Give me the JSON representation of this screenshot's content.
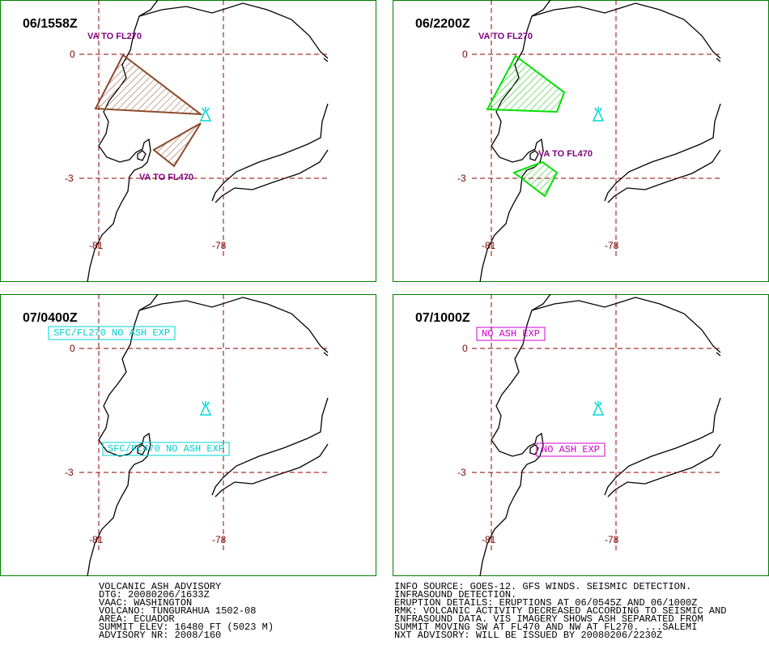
{
  "panels": [
    {
      "time": "06/1558Z",
      "annotations": [
        "VA TO FL270",
        "VA TO FL470"
      ]
    },
    {
      "time": "06/2200Z",
      "annotations": [
        "VA TO FL270",
        "VA TO FL470"
      ]
    },
    {
      "time": "07/0400Z",
      "annotations": [
        "SFC/FL270 NO ASH EXP",
        "SFC/FL470 NO ASH EXP"
      ]
    },
    {
      "time": "07/1000Z",
      "annotations": [
        "NO ASH EXP",
        "NO ASH EXP"
      ]
    }
  ],
  "grid_labels": {
    "latitudes": [
      "0",
      "-3"
    ],
    "longitudes": [
      "-81",
      "-78"
    ]
  },
  "advisory": [
    "VOLCANIC ASH ADVISORY",
    "DTG: 20080206/1633Z",
    "VAAC: WASHINGTON",
    "VOLCANO: TUNGURAHUA 1502-08",
    "AREA: ECUADOR",
    "SUMMIT ELEV: 16480 FT (5023 M)",
    "ADVISORY NR: 2008/160"
  ],
  "remarks": [
    "INFO SOURCE: GOES-12. GFS WINDS. SEISMIC DETECTION.",
    "INFRASOUND DETECTION.",
    "ERUPTION DETAILS: ERUPTIONS AT 06/0545Z AND 06/1000Z",
    "RMK: VOLCANIC ACTIVITY DECREASED ACCORDING TO SEISMIC AND",
    "INFRASOUND DATA. VIS IMAGERY SHOWS ASH SEPARATED FROM",
    "SUMMIT MOVING SW AT FL470 AND NW AT FL270. ...SALEMI",
    "NXT ADVISORY: WILL BE ISSUED BY 20080206/2230Z"
  ]
}
